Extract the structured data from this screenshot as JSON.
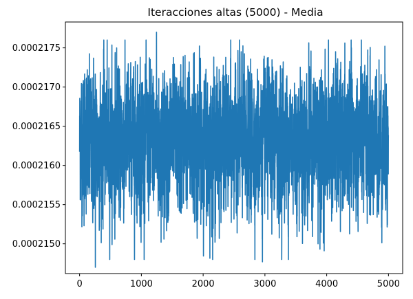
{
  "chart_data": {
    "type": "line",
    "title": "Iteracciones altas (5000) - Media",
    "xlabel": "",
    "ylabel": "",
    "xlim": [
      -230,
      5230
    ],
    "ylim": [
      0.00021462,
      0.00021783
    ],
    "xticks": [
      0,
      1000,
      2000,
      3000,
      4000,
      5000
    ],
    "xtick_labels": [
      "0",
      "1000",
      "2000",
      "3000",
      "4000",
      "5000"
    ],
    "yticks": [
      0.000215,
      0.0002155,
      0.000216,
      0.0002165,
      0.000217,
      0.0002175
    ],
    "ytick_labels": [
      "0.0002150",
      "0.0002155",
      "0.0002160",
      "0.0002165",
      "0.0002170",
      "0.0002175"
    ],
    "grid": false,
    "series": [
      {
        "color": "#1f77b4",
        "n_points": 5000,
        "mean": 0.0002163,
        "amplitude": 4.5e-07,
        "min": 0.0002147,
        "max": 0.0002177,
        "extremes": [
          {
            "x": 255,
            "y": 0.0002147
          },
          {
            "x": 2960,
            "y": 0.00021477
          },
          {
            "x": 1245,
            "y": 0.0002177
          },
          {
            "x": 3380,
            "y": 0.0002148
          },
          {
            "x": 600,
            "y": 0.0002175
          },
          {
            "x": 3860,
            "y": 0.000215
          },
          {
            "x": 4400,
            "y": 0.0002175
          }
        ]
      }
    ]
  }
}
